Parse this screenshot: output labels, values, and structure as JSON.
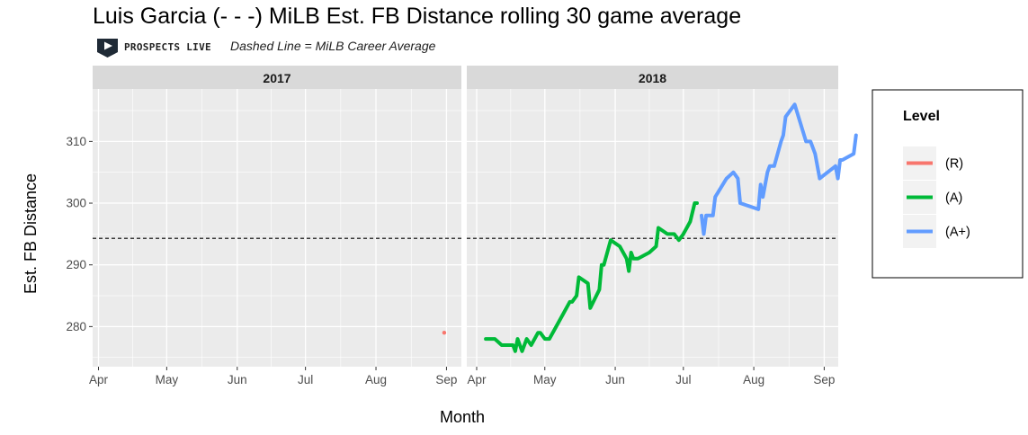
{
  "title": "Luis Garcia (- - -) MiLB Est. FB Distance rolling 30 game average",
  "logo": {
    "name": "PROSPECTS LIVE"
  },
  "note": "Dashed Line = MiLB Career Average",
  "chart_data": {
    "type": "line",
    "title": "Luis Garcia (- - -) MiLB Est. FB Distance rolling 30 game average",
    "xlabel": "Month",
    "ylabel": "Est. FB Distance",
    "ylim": [
      273.5,
      318.5
    ],
    "y_ticks": [
      280,
      290,
      300,
      310
    ],
    "x_ticks": [
      "Apr",
      "May",
      "Jun",
      "Jul",
      "Aug",
      "Sep"
    ],
    "grid": true,
    "career_average": 294.3,
    "legend": {
      "title": "Level",
      "position": "right",
      "items": [
        {
          "label": "(R)",
          "color": "#F8766D"
        },
        {
          "label": "(A)",
          "color": "#00BA38"
        },
        {
          "label": "(A+)",
          "color": "#619CFF"
        }
      ]
    },
    "panels": [
      {
        "label": "2017",
        "series": [
          {
            "level": "(R)",
            "color": "#F8766D",
            "style": "point",
            "points": [
              [
                "2017-08-31",
                279
              ]
            ]
          }
        ]
      },
      {
        "label": "2018",
        "series": [
          {
            "level": "(A)",
            "color": "#00BA38",
            "style": "line",
            "points": [
              [
                "2018-04-05",
                278
              ],
              [
                "2018-04-09",
                278
              ],
              [
                "2018-04-12",
                277
              ],
              [
                "2018-04-17",
                277
              ],
              [
                "2018-04-18",
                276
              ],
              [
                "2018-04-19",
                278
              ],
              [
                "2018-04-21",
                276
              ],
              [
                "2018-04-23",
                278
              ],
              [
                "2018-04-25",
                277
              ],
              [
                "2018-04-28",
                279
              ],
              [
                "2018-04-29",
                279
              ],
              [
                "2018-05-01",
                278
              ],
              [
                "2018-05-03",
                278
              ],
              [
                "2018-05-06",
                280
              ],
              [
                "2018-05-09",
                282
              ],
              [
                "2018-05-12",
                284
              ],
              [
                "2018-05-13",
                284
              ],
              [
                "2018-05-15",
                285
              ],
              [
                "2018-05-16",
                288
              ],
              [
                "2018-05-20",
                287
              ],
              [
                "2018-05-21",
                283
              ],
              [
                "2018-05-25",
                286
              ],
              [
                "2018-05-26",
                290
              ],
              [
                "2018-05-27",
                290
              ],
              [
                "2018-05-30",
                294
              ],
              [
                "2018-06-03",
                293
              ],
              [
                "2018-06-06",
                291
              ],
              [
                "2018-06-07",
                289
              ],
              [
                "2018-06-08",
                292
              ],
              [
                "2018-06-09",
                291
              ],
              [
                "2018-06-11",
                291
              ],
              [
                "2018-06-16",
                292
              ],
              [
                "2018-06-19",
                293
              ],
              [
                "2018-06-20",
                296
              ],
              [
                "2018-06-24",
                295
              ],
              [
                "2018-06-27",
                295
              ],
              [
                "2018-06-29",
                294
              ],
              [
                "2018-07-01",
                295
              ],
              [
                "2018-07-04",
                297
              ],
              [
                "2018-07-06",
                300
              ],
              [
                "2018-07-07",
                300
              ]
            ]
          },
          {
            "level": "(A+)",
            "color": "#619CFF",
            "style": "line",
            "points": [
              [
                "2018-07-09",
                298
              ],
              [
                "2018-07-10",
                295
              ],
              [
                "2018-07-11",
                298
              ],
              [
                "2018-07-14",
                298
              ],
              [
                "2018-07-15",
                301
              ],
              [
                "2018-07-20",
                304
              ],
              [
                "2018-07-23",
                305
              ],
              [
                "2018-07-25",
                304
              ],
              [
                "2018-07-26",
                300
              ],
              [
                "2018-08-03",
                299
              ],
              [
                "2018-08-04",
                303
              ],
              [
                "2018-08-05",
                301
              ],
              [
                "2018-08-07",
                305
              ],
              [
                "2018-08-08",
                306
              ],
              [
                "2018-08-10",
                306
              ],
              [
                "2018-08-13",
                310
              ],
              [
                "2018-08-14",
                311
              ],
              [
                "2018-08-15",
                314
              ],
              [
                "2018-08-19",
                316
              ],
              [
                "2018-08-24",
                310
              ],
              [
                "2018-08-26",
                310
              ],
              [
                "2018-08-28",
                308
              ],
              [
                "2018-08-30",
                304
              ],
              [
                "2018-09-06",
                306
              ],
              [
                "2018-09-07",
                304
              ],
              [
                "2018-09-08",
                307
              ],
              [
                "2018-09-09",
                307
              ],
              [
                "2018-09-14",
                308
              ],
              [
                "2018-09-15",
                311
              ]
            ]
          }
        ]
      }
    ]
  }
}
